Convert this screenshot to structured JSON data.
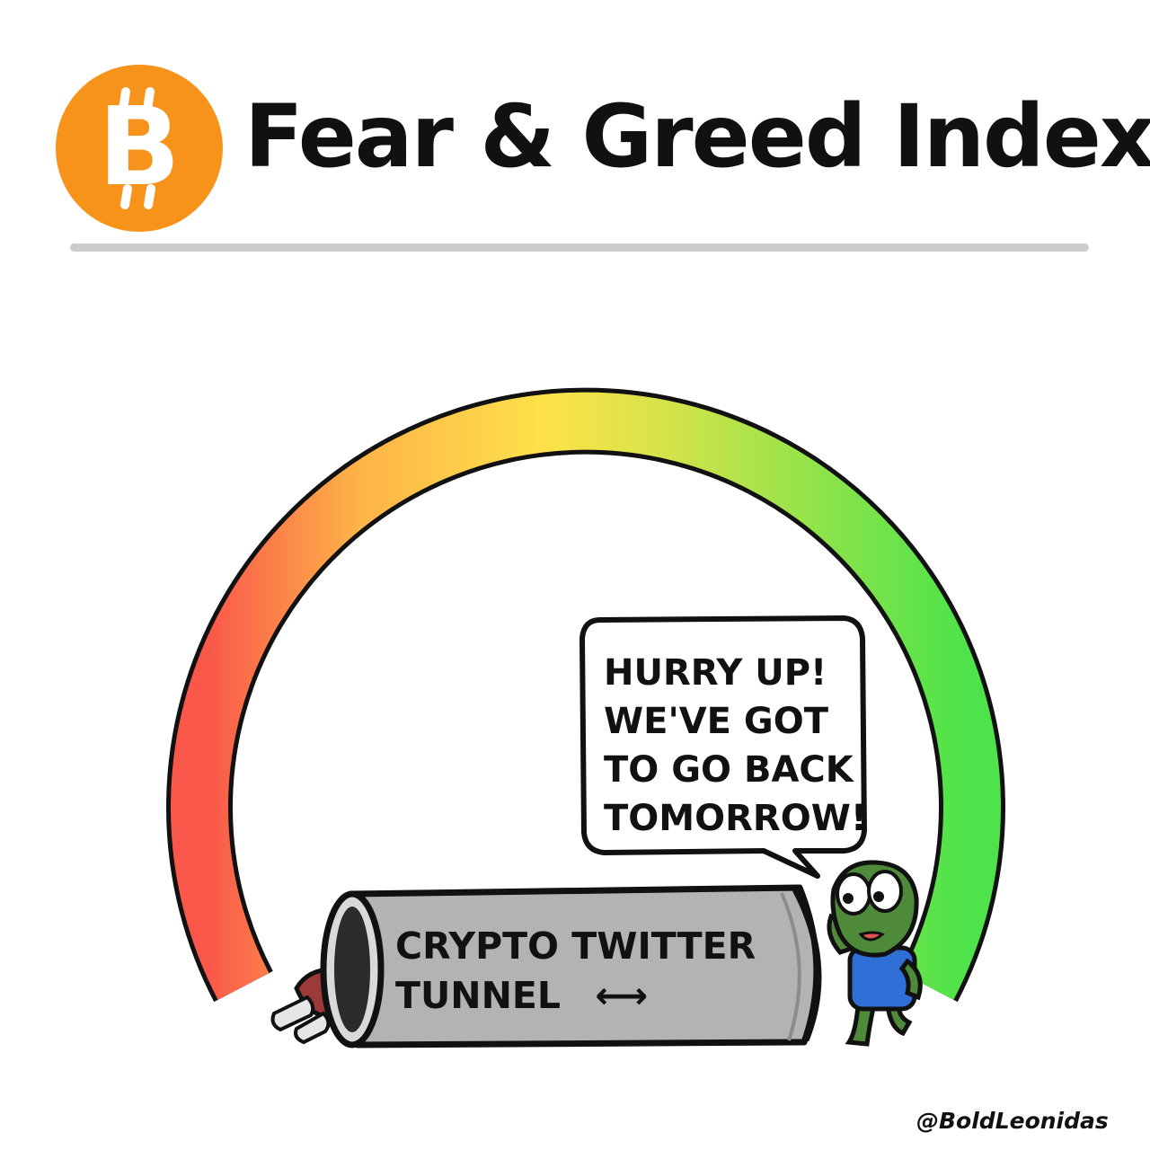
{
  "header": {
    "logo_symbol": "B",
    "title": "Fear & Greed Index",
    "logo_color": "#f7931a"
  },
  "gauge": {
    "gradient_colors": [
      "#f9574a",
      "#fdb348",
      "#fde24a",
      "#d8e34a",
      "#4ee34a"
    ]
  },
  "speech_bubble": {
    "lines": [
      "HURRY UP!",
      "WE'VE GOT",
      "TO GO BACK",
      "TOMORROW!"
    ]
  },
  "tunnel": {
    "line1": "CRYPTO TWITTER",
    "line2": "TUNNEL",
    "arrow": "⟷"
  },
  "character": {
    "skin_color": "#4f8a3a",
    "shirt_color": "#2f6fd6"
  },
  "signature": "@BoldLeonidas"
}
